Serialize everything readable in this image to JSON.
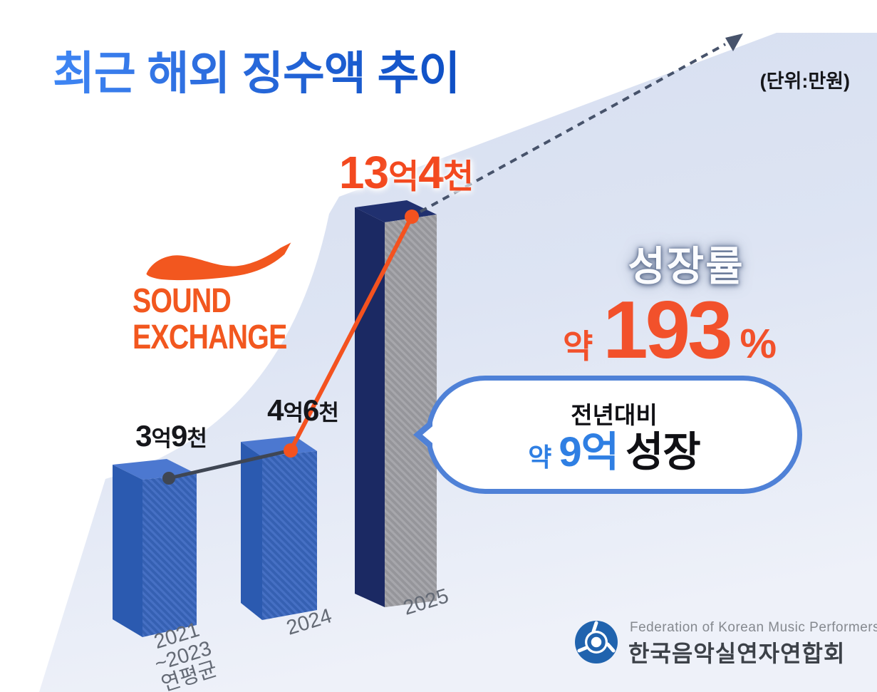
{
  "title": "최근 해외 징수액 추이",
  "unit_note": "(단위:만원)",
  "logo": {
    "line1": "SOUND",
    "line2": "EXCHANGE"
  },
  "growth": {
    "heading": "성장률",
    "value_text": "약 193%"
  },
  "bubble": {
    "line1": "전년대비",
    "line2_prefix": "약",
    "line2_value": "9억",
    "line2_suffix": "성장"
  },
  "footer": {
    "org_en": "Federation of Korean Music Performers",
    "org_kr": "한국음악실연자연합회"
  },
  "chart_data": {
    "type": "bar",
    "title": "최근 해외 징수액 추이",
    "unit": "만원",
    "source_logo": "SoundExchange",
    "categories": [
      "2021\n~2023\n연평균",
      "2024",
      "2025"
    ],
    "value_labels": [
      "3억9천",
      "4억6천",
      "13억4천"
    ],
    "values_manwon": [
      39000,
      46000,
      134000
    ],
    "ylim": [
      0,
      140000
    ],
    "grid": false,
    "legend": "none",
    "annotations": {
      "growth_rate_heading": "성장률",
      "growth_rate": "약 193%",
      "yoy_note": "전년대비 약 9억 성장",
      "trend_arrow": "dashed ascending arrow"
    }
  },
  "colors": {
    "accent_orange": "#F2571F",
    "title_blue_light": "#3F86F4",
    "title_blue_dark": "#0E4FC4",
    "bar_blue_front": "#3560B2",
    "bar_blue_side": "#2B5AB0",
    "bar_blue_top": "#4C78D0",
    "bar_navy": "#1C2A66",
    "bar_gray_front": "#97979C",
    "beam_bg": "#DCE3F3",
    "bubble_border": "#4F81D7",
    "value_blue": "#2F7FE3",
    "connector_dark": "#3F4653"
  }
}
